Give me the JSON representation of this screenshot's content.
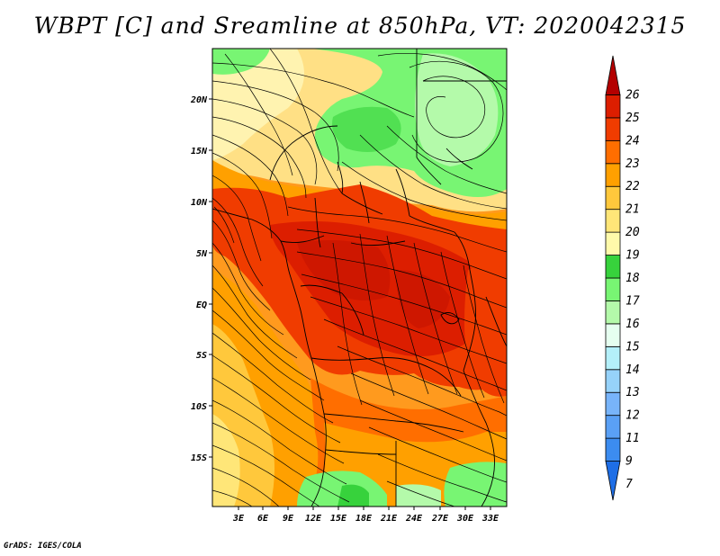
{
  "title": "WBPT [C] and Sreamline at 850hPa, VT: 2020042315",
  "credit": "GrADS: IGES/COLA",
  "lat_labels": [
    "20N",
    "15N",
    "10N",
    "5N",
    "EQ",
    "5S",
    "10S",
    "15S"
  ],
  "lon_labels": [
    "3E",
    "6E",
    "9E",
    "12E",
    "15E",
    "18E",
    "21E",
    "24E",
    "27E",
    "30E",
    "33E"
  ],
  "colorbar": {
    "labels": [
      "7",
      "9",
      "11",
      "12",
      "13",
      "14",
      "15",
      "16",
      "17",
      "18",
      "19",
      "20",
      "21",
      "22",
      "23",
      "24",
      "25",
      "26"
    ],
    "colors": [
      "#1e6ee6",
      "#3c8cf0",
      "#5aa0f5",
      "#78b4fa",
      "#96d2fa",
      "#b4f0fa",
      "#e6fff0",
      "#b4faaa",
      "#78f573",
      "#37d23c",
      "#fffaaa",
      "#ffe678",
      "#ffc83c",
      "#ffa000",
      "#ff6e00",
      "#f03c00",
      "#dc1e00",
      "#b40000"
    ]
  }
}
